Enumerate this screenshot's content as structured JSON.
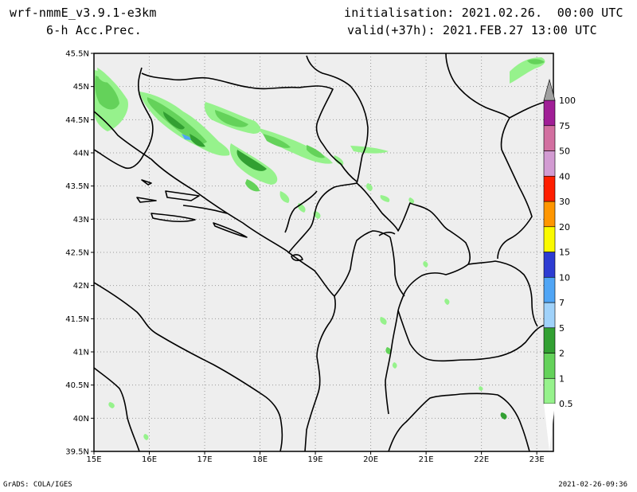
{
  "header": {
    "model": "wrf-nmmE_v3.9.1-e3km",
    "field": "6-h Acc.Prec.",
    "initialisation": "initialisation: 2021.02.26.  00:00 UTC",
    "valid": "valid(+37h): 2021.FEB.27 13:00 UTC"
  },
  "footer": {
    "credit": "GrADS: COLA/IGES",
    "timestamp": "2021-02-26-09:36"
  },
  "map": {
    "lon_labels": [
      "15E",
      "16E",
      "17E",
      "18E",
      "19E",
      "20E",
      "21E",
      "22E",
      "23E"
    ],
    "lat_labels": [
      "45.5N",
      "45N",
      "44.5N",
      "44N",
      "43.5N",
      "43N",
      "42.5N",
      "42N",
      "41.5N",
      "41N",
      "40.5N",
      "40N",
      "39.5N"
    ],
    "lon_range": [
      15,
      23.3
    ],
    "lat_range": [
      39.5,
      45.5
    ],
    "background_color": "#eeeeee",
    "grid": "dotted"
  },
  "colorbar": {
    "levels": [
      "0.5",
      "1",
      "2",
      "5",
      "7",
      "10",
      "15",
      "20",
      "30",
      "40",
      "50",
      "75",
      "100"
    ],
    "colors": [
      "#96f28c",
      "#64d25a",
      "#32a032",
      "#a0d2fa",
      "#50a5f5",
      "#2d3cd2",
      "#fafa00",
      "#ff9600",
      "#ff1e00",
      "#d29bd2",
      "#d26fa0",
      "#a01e96"
    ],
    "cap_color": "#a0a0a0"
  }
}
